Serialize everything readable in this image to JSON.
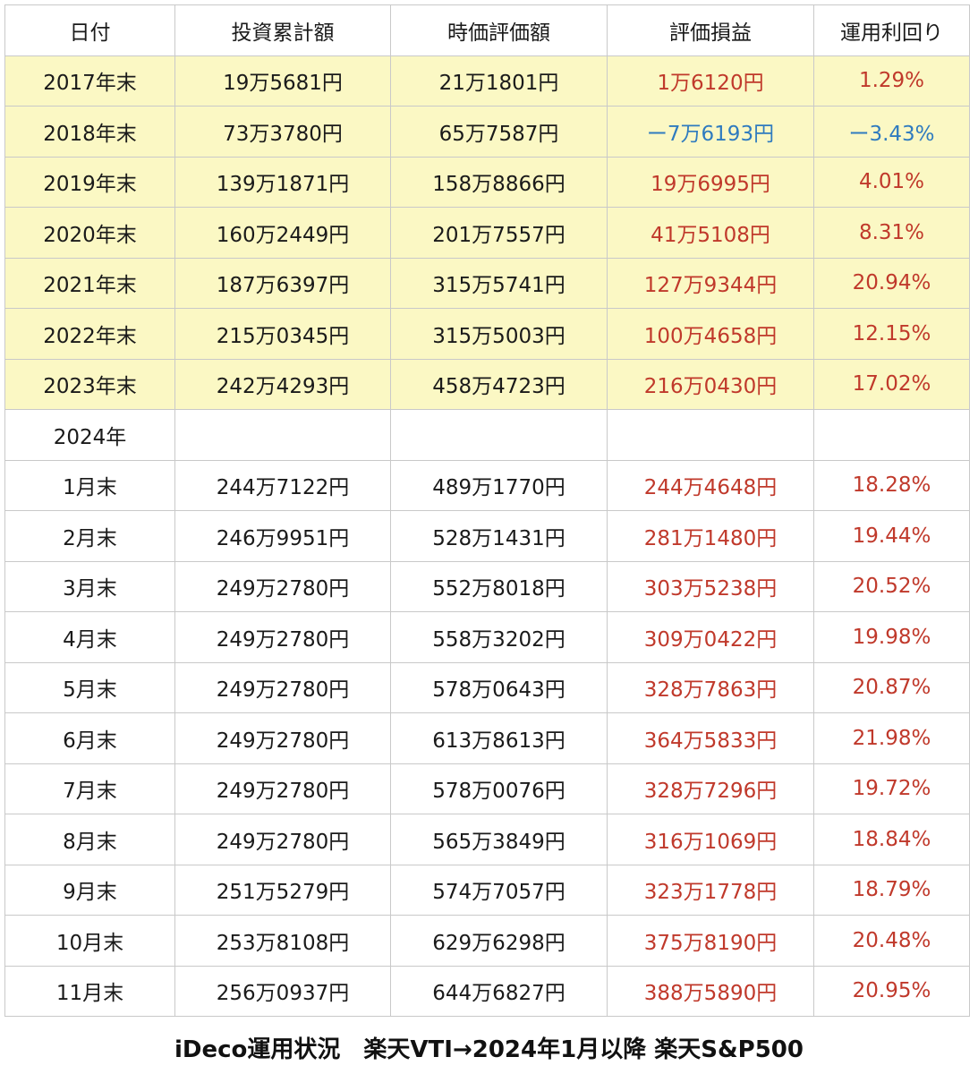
{
  "table": {
    "headers": [
      "日付",
      "投資累計額",
      "時価評価額",
      "評価損益",
      "運用利回り"
    ],
    "yearly_rows": [
      {
        "date": "2017年末",
        "invested": "19万5681円",
        "market_value": "21万1801円",
        "gain": "1万6120円",
        "yield": "1.29%",
        "sign": "pos"
      },
      {
        "date": "2018年末",
        "invested": "73万3780円",
        "market_value": "65万7587円",
        "gain": "ー7万6193円",
        "yield": "ー3.43%",
        "sign": "neg"
      },
      {
        "date": "2019年末",
        "invested": "139万1871円",
        "market_value": "158万8866円",
        "gain": "19万6995円",
        "yield": "4.01%",
        "sign": "pos"
      },
      {
        "date": "2020年末",
        "invested": "160万2449円",
        "market_value": "201万7557円",
        "gain": "41万5108円",
        "yield": "8.31%",
        "sign": "pos"
      },
      {
        "date": "2021年末",
        "invested": "187万6397円",
        "market_value": "315万5741円",
        "gain": "127万9344円",
        "yield": "20.94%",
        "sign": "pos"
      },
      {
        "date": "2022年末",
        "invested": "215万0345円",
        "market_value": "315万5003円",
        "gain": "100万4658円",
        "yield": "12.15%",
        "sign": "pos"
      },
      {
        "date": "2023年末",
        "invested": "242万4293円",
        "market_value": "458万4723円",
        "gain": "216万0430円",
        "yield": "17.02%",
        "sign": "pos"
      }
    ],
    "year_2024_label": "2024年",
    "monthly_rows": [
      {
        "date": "1月末",
        "invested": "244万7122円",
        "market_value": "489万1770円",
        "gain": "244万4648円",
        "yield": "18.28%",
        "sign": "pos"
      },
      {
        "date": "2月末",
        "invested": "246万9951円",
        "market_value": "528万1431円",
        "gain": "281万1480円",
        "yield": "19.44%",
        "sign": "pos"
      },
      {
        "date": "3月末",
        "invested": "249万2780円",
        "market_value": "552万8018円",
        "gain": "303万5238円",
        "yield": "20.52%",
        "sign": "pos"
      },
      {
        "date": "4月末",
        "invested": "249万2780円",
        "market_value": "558万3202円",
        "gain": "309万0422円",
        "yield": "19.98%",
        "sign": "pos"
      },
      {
        "date": "5月末",
        "invested": "249万2780円",
        "market_value": "578万0643円",
        "gain": "328万7863円",
        "yield": "20.87%",
        "sign": "pos"
      },
      {
        "date": "6月末",
        "invested": "249万2780円",
        "market_value": "613万8613円",
        "gain": "364万5833円",
        "yield": "21.98%",
        "sign": "pos"
      },
      {
        "date": "7月末",
        "invested": "249万2780円",
        "market_value": "578万0076円",
        "gain": "328万7296円",
        "yield": "19.72%",
        "sign": "pos"
      },
      {
        "date": "8月末",
        "invested": "249万2780円",
        "market_value": "565万3849円",
        "gain": "316万1069円",
        "yield": "18.84%",
        "sign": "pos"
      },
      {
        "date": "9月末",
        "invested": "251万5279円",
        "market_value": "574万7057円",
        "gain": "323万1778円",
        "yield": "18.79%",
        "sign": "pos"
      },
      {
        "date": "10月末",
        "invested": "253万8108円",
        "market_value": "629万6298円",
        "gain": "375万8190円",
        "yield": "20.48%",
        "sign": "pos"
      },
      {
        "date": "11月末",
        "invested": "256万0937円",
        "market_value": "644万6827円",
        "gain": "388万5890円",
        "yield": "20.95%",
        "sign": "pos"
      }
    ]
  },
  "caption": "iDeco運用状況　楽天VTI→2024年1月以降 楽天S&P500",
  "colors": {
    "year_row_background": "#fbf8c4",
    "gain_positive": "#c0392b",
    "gain_negative": "#2f7bbf",
    "grid_line": "#c9c9c9"
  }
}
